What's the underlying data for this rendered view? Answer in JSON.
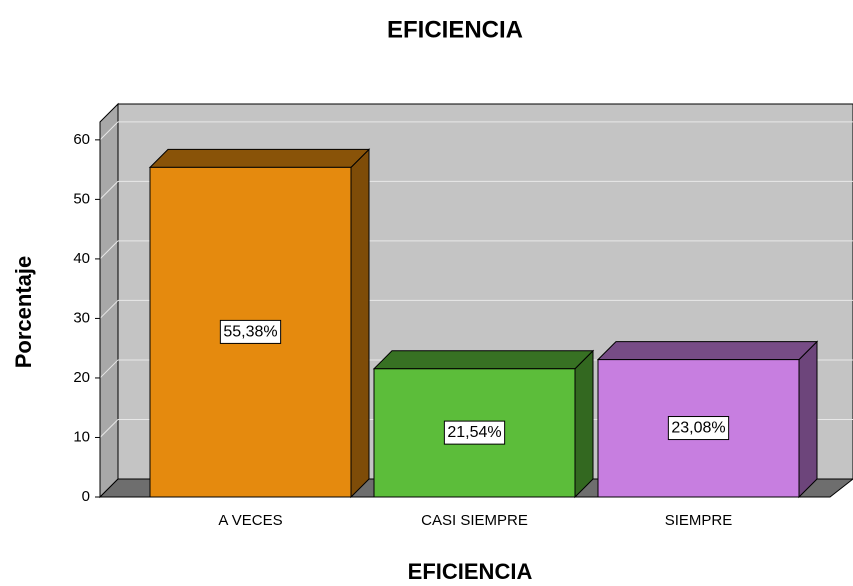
{
  "chart_data": {
    "type": "bar3d",
    "title": "EFICIENCIA",
    "xlabel": "EFICIENCIA",
    "ylabel": "Porcentaje",
    "categories": [
      "A VECES",
      "CASI SIEMPRE",
      "SIEMPRE"
    ],
    "values": [
      55.38,
      21.54,
      23.08
    ],
    "value_labels": [
      "55,38%",
      "21,54%",
      "23,08%"
    ],
    "colors": [
      "#e58a0e",
      "#5cbd3a",
      "#c77ee0"
    ],
    "ylim": [
      0,
      63
    ],
    "yticks": [
      0,
      10,
      20,
      30,
      40,
      50,
      60
    ],
    "grid": true
  }
}
